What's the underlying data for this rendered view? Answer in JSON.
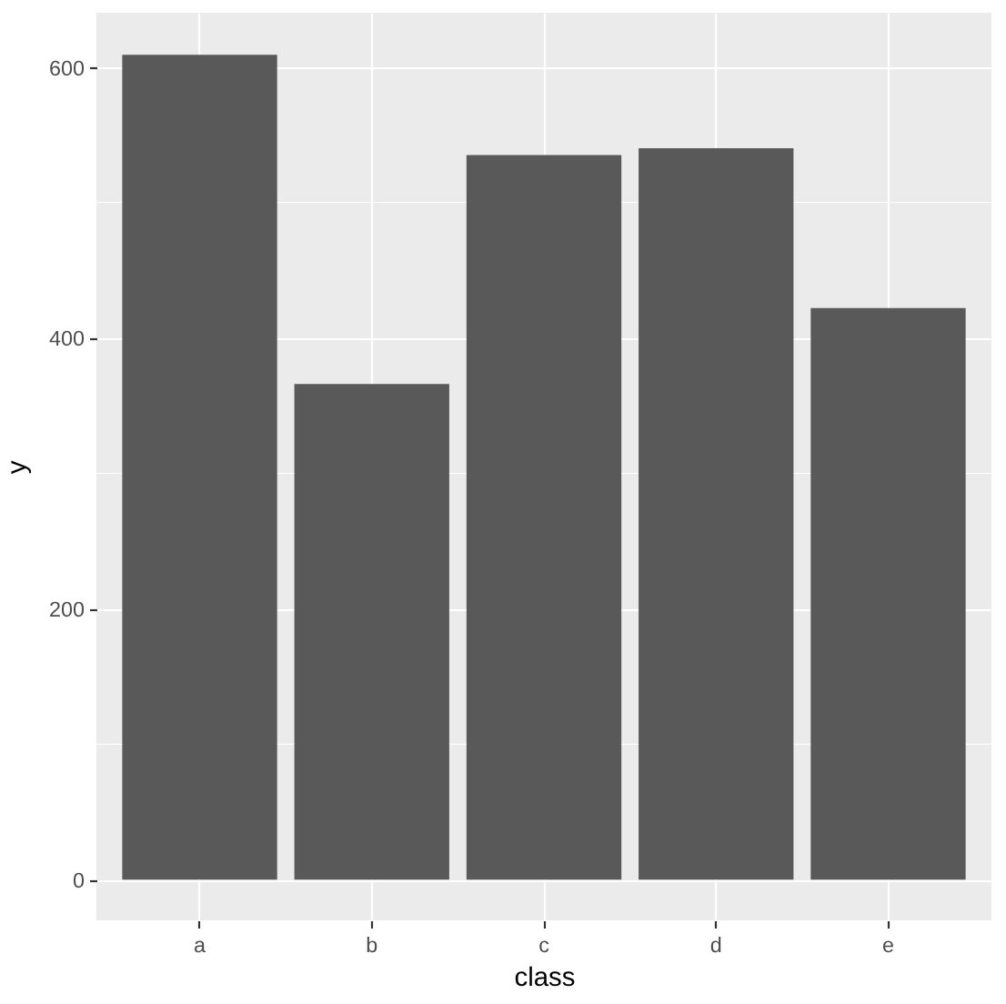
{
  "chart_data": {
    "type": "bar",
    "xlabel": "class",
    "ylabel": "y",
    "categories": [
      "a",
      "b",
      "c",
      "d",
      "e"
    ],
    "values": [
      609,
      366,
      535,
      540,
      422
    ],
    "color": "#595959",
    "ylim": [
      -30,
      640
    ],
    "yticks": [
      0,
      200,
      400,
      600,
      {
        "value": 100,
        "label": null
      },
      {
        "value": 300,
        "label": null
      },
      {
        "value": 500,
        "label": null
      }
    ],
    "grid": true
  }
}
